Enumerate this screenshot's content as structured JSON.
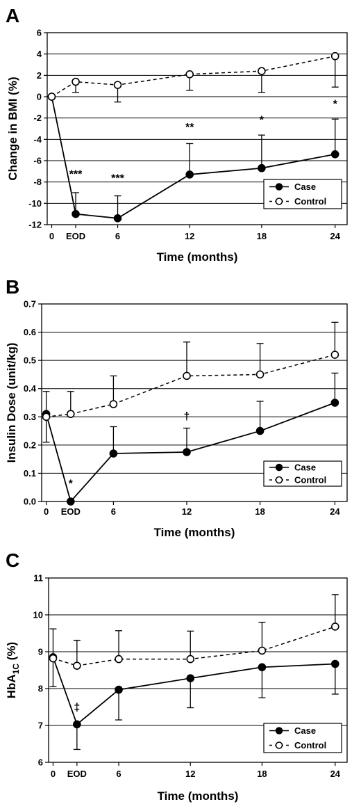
{
  "chart_data": [
    {
      "panel": "A",
      "type": "line",
      "ylabel": "Change in BMI (%)",
      "xlabel": "Time (months)",
      "ylim": [
        -12,
        6
      ],
      "yticks": [
        "-12",
        "-10",
        "-8",
        "-6",
        "-4",
        "-2",
        "0",
        "2",
        "4",
        "6"
      ],
      "x": [
        "0",
        "EOD",
        "6",
        "12",
        "18",
        "24"
      ],
      "legend": {
        "placement": "bottom-right",
        "entries": [
          "Case",
          "Control"
        ]
      },
      "grid": true,
      "series": [
        {
          "name": "Case",
          "style": "solid-filled",
          "values": [
            0,
            -11.0,
            -11.4,
            -7.3,
            -6.7,
            -5.4
          ],
          "upper": [
            0,
            -9.0,
            -9.3,
            -4.4,
            -3.6,
            -2.1
          ]
        },
        {
          "name": "Control",
          "style": "dashed-open",
          "values": [
            0,
            1.4,
            1.1,
            2.1,
            2.4,
            3.8
          ],
          "upper": [
            0,
            0.4,
            -0.5,
            0.6,
            0.4,
            0.9
          ],
          "error_dir": "down"
        }
      ],
      "annotations": [
        {
          "x": "EOD",
          "y": -7.6,
          "text": "***"
        },
        {
          "x": "6",
          "y": -8.0,
          "text": "***"
        },
        {
          "x": "12",
          "y": -3.2,
          "text": "**"
        },
        {
          "x": "18",
          "y": -2.5,
          "text": "*"
        },
        {
          "x": "24",
          "y": -1.0,
          "text": "*"
        }
      ]
    },
    {
      "panel": "B",
      "type": "line",
      "ylabel": "Insulin Dose (unit/kg)",
      "xlabel": "Time (months)",
      "ylim": [
        0,
        0.7
      ],
      "yticks": [
        "0.0",
        "0.1",
        "0.2",
        "0.3",
        "0.4",
        "0.5",
        "0.6",
        "0.7"
      ],
      "x": [
        "0",
        "EOD",
        "6",
        "12",
        "18",
        "24"
      ],
      "legend": {
        "placement": "bottom-right",
        "entries": [
          "Case",
          "Control"
        ]
      },
      "grid": true,
      "series": [
        {
          "name": "Case",
          "style": "solid-filled",
          "values": [
            0.31,
            0.0,
            0.17,
            0.175,
            0.25,
            0.35
          ],
          "upper": [
            0.39,
            0.0,
            0.265,
            0.26,
            0.355,
            0.455
          ],
          "lower": [
            0.21,
            null,
            null,
            null,
            null,
            null
          ]
        },
        {
          "name": "Control",
          "style": "dashed-open",
          "values": [
            0.3,
            0.31,
            0.345,
            0.445,
            0.45,
            0.52
          ],
          "upper": [
            0.3,
            0.39,
            0.445,
            0.565,
            0.56,
            0.635
          ]
        }
      ],
      "annotations": [
        {
          "x": "EOD",
          "y": 0.05,
          "text": "*"
        },
        {
          "x": "12",
          "y": 0.29,
          "text": "†"
        }
      ]
    },
    {
      "panel": "C",
      "type": "line",
      "ylabel": "HbA1C (%)",
      "xlabel": "Time (months)",
      "ylim": [
        6,
        11
      ],
      "yticks": [
        "6",
        "7",
        "8",
        "9",
        "10",
        "11"
      ],
      "x": [
        "0",
        "EOD",
        "6",
        "12",
        "18",
        "24"
      ],
      "legend": {
        "placement": "bottom-right",
        "entries": [
          "Case",
          "Control"
        ]
      },
      "grid": true,
      "series": [
        {
          "name": "Case",
          "style": "solid-filled",
          "values": [
            8.85,
            7.03,
            7.97,
            8.28,
            8.58,
            8.67
          ],
          "lower": [
            8.05,
            6.35,
            7.15,
            7.48,
            7.75,
            7.85
          ]
        },
        {
          "name": "Control",
          "style": "dashed-open",
          "values": [
            8.82,
            8.62,
            8.8,
            8.8,
            9.03,
            9.68
          ],
          "upper": [
            9.62,
            9.31,
            9.57,
            9.56,
            9.8,
            10.55
          ]
        }
      ],
      "annotations": [
        {
          "x": "EOD",
          "y": 7.4,
          "text": "‡"
        }
      ]
    }
  ]
}
